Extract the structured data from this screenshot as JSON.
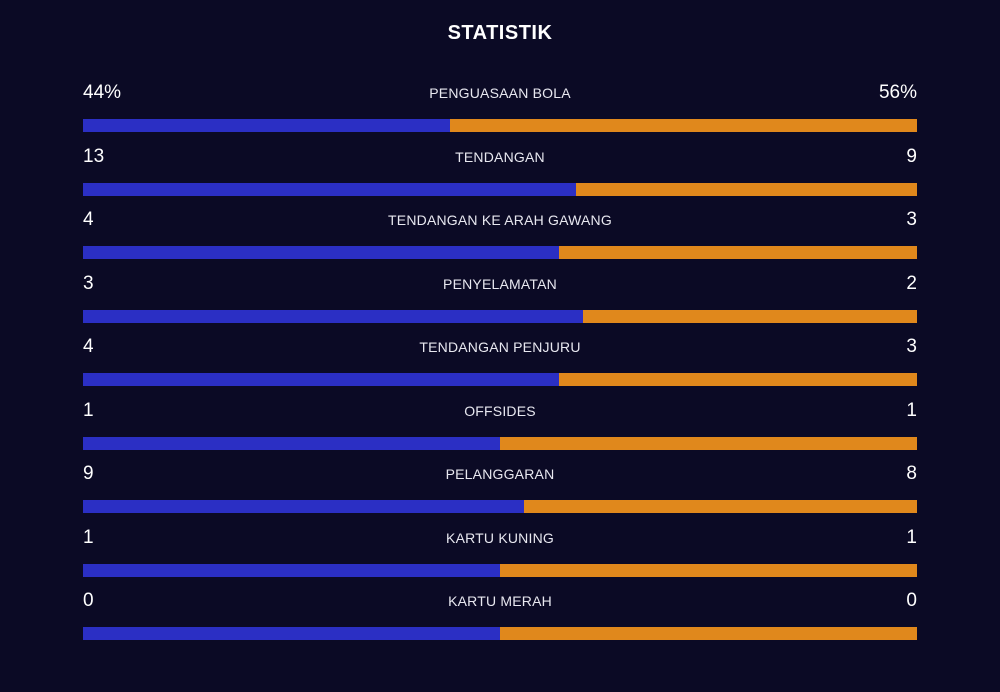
{
  "title": "STATISTIK",
  "colors": {
    "home": "#2b2fc4",
    "away": "#e0881c",
    "background": "#0b0a25"
  },
  "stats": [
    {
      "name": "PENGUASAAN BOLA",
      "home": "44%",
      "away": "56%",
      "home_share": 0.44
    },
    {
      "name": "TENDANGAN",
      "home": "13",
      "away": "9",
      "home_share": 0.591
    },
    {
      "name": "TENDANGAN KE ARAH GAWANG",
      "home": "4",
      "away": "3",
      "home_share": 0.571
    },
    {
      "name": "PENYELAMATAN",
      "home": "3",
      "away": "2",
      "home_share": 0.6
    },
    {
      "name": "TENDANGAN PENJURU",
      "home": "4",
      "away": "3",
      "home_share": 0.571
    },
    {
      "name": "OFFSIDES",
      "home": "1",
      "away": "1",
      "home_share": 0.5
    },
    {
      "name": "PELANGGARAN",
      "home": "9",
      "away": "8",
      "home_share": 0.529
    },
    {
      "name": "KARTU KUNING",
      "home": "1",
      "away": "1",
      "home_share": 0.5
    },
    {
      "name": "KARTU MERAH",
      "home": "0",
      "away": "0",
      "home_share": 0.5
    }
  ]
}
